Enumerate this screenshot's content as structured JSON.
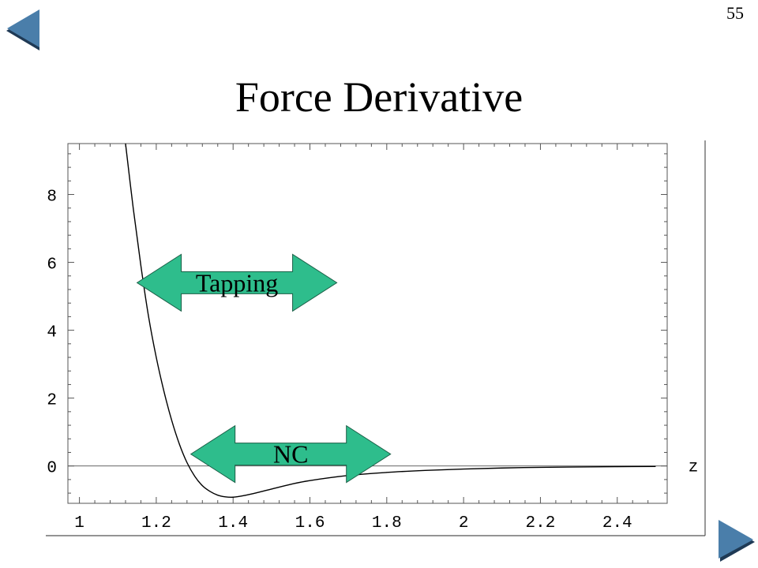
{
  "slide": {
    "number": "55",
    "title": "Force Derivative",
    "nav": {
      "prev_icon": "left-arrow-icon",
      "next_icon": "right-arrow-icon",
      "button_color": "#4a7eaa"
    }
  },
  "annotations": [
    {
      "label": "Tapping",
      "x_range": [
        1.15,
        1.67
      ],
      "y": 5.4,
      "color": "#2ebd8c"
    },
    {
      "label": "NC",
      "x_range": [
        1.29,
        1.81
      ],
      "y": 0.35,
      "color": "#2ebd8c"
    }
  ],
  "chart_data": {
    "type": "line",
    "title": "",
    "xlabel": "z",
    "ylabel": "",
    "xlim": [
      0.97,
      2.53
    ],
    "ylim": [
      -1.1,
      9.5
    ],
    "x_ticks": [
      "1",
      "1.2",
      "1.4",
      "1.6",
      "1.8",
      "2",
      "2.2",
      "2.4"
    ],
    "y_ticks": [
      "0",
      "2",
      "4",
      "6",
      "8"
    ],
    "grid": false,
    "series": [
      {
        "x": [
          1.12,
          1.14,
          1.16,
          1.18,
          1.2,
          1.22,
          1.24,
          1.26,
          1.28,
          1.3,
          1.32,
          1.34,
          1.36,
          1.38,
          1.4,
          1.42,
          1.45,
          1.5,
          1.55,
          1.6,
          1.7,
          1.8,
          1.9,
          2.0,
          2.1,
          2.2,
          2.3,
          2.4,
          2.5
        ],
        "y": [
          9.5,
          7.6,
          5.9,
          4.4,
          3.2,
          2.2,
          1.35,
          0.65,
          0.1,
          -0.3,
          -0.58,
          -0.75,
          -0.86,
          -0.91,
          -0.92,
          -0.89,
          -0.82,
          -0.68,
          -0.54,
          -0.43,
          -0.28,
          -0.19,
          -0.13,
          -0.09,
          -0.06,
          -0.04,
          -0.03,
          -0.02,
          -0.015
        ]
      }
    ]
  }
}
